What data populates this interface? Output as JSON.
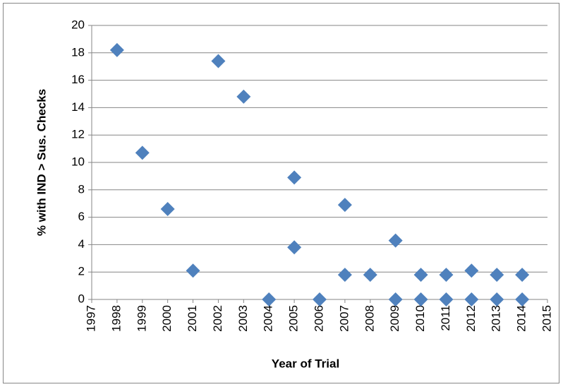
{
  "chart_data": {
    "type": "scatter",
    "x_label": "Year of Trial",
    "y_label": "% with IND > Sus. Checks",
    "x": [
      1998,
      1999,
      2000,
      2001,
      2002,
      2003,
      2004,
      2005,
      2005,
      2006,
      2007,
      2007,
      2008,
      2009,
      2009,
      2010,
      2010,
      2011,
      2011,
      2012,
      2012,
      2013,
      2013,
      2014,
      2014
    ],
    "series": [
      {
        "name": "% with IND > Sus. Checks",
        "color": "#4f81bd",
        "values": [
          18.2,
          10.7,
          6.6,
          2.1,
          17.4,
          14.8,
          0,
          8.9,
          3.8,
          0,
          6.9,
          1.8,
          1.8,
          4.3,
          0,
          1.8,
          0,
          1.8,
          0,
          2.1,
          0,
          1.8,
          0,
          1.8,
          0
        ]
      }
    ],
    "xlim": [
      1997,
      2015
    ],
    "xticks": [
      1997,
      1998,
      1999,
      2000,
      2001,
      2002,
      2003,
      2004,
      2005,
      2006,
      2007,
      2008,
      2009,
      2010,
      2011,
      2012,
      2013,
      2014,
      2015
    ],
    "ylim": [
      0,
      20
    ],
    "yticks": [
      0,
      2,
      4,
      6,
      8,
      10,
      12,
      14,
      16,
      18,
      20
    ],
    "grid": true,
    "legend": false
  }
}
